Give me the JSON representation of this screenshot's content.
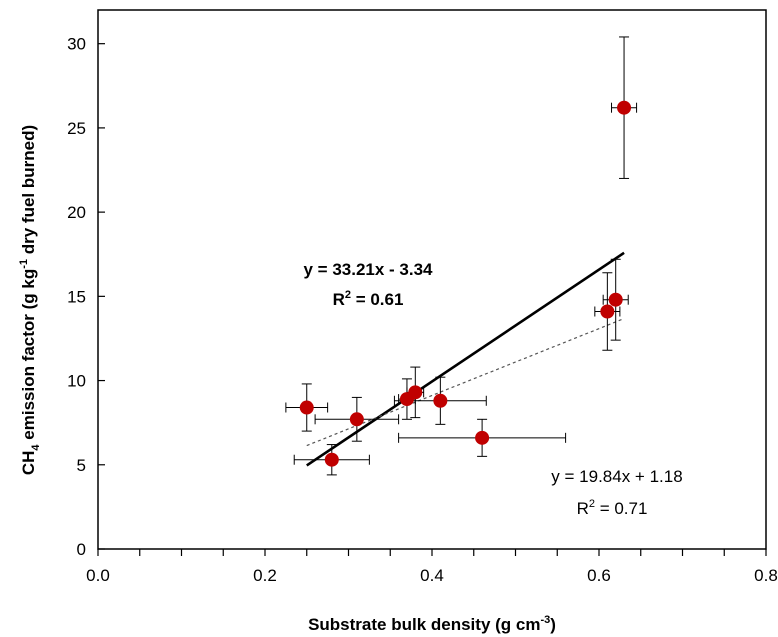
{
  "chart_data": {
    "type": "scatter",
    "xlabel": {
      "main": "Substrate bulk density (g cm",
      "sup": "-3",
      "end": ")"
    },
    "ylabel": {
      "main": "CH",
      "sub": "4",
      "mid": "  emission factor (g kg",
      "sup": "-1",
      "end": " dry fuel burned)"
    },
    "xlim": [
      0.0,
      0.8
    ],
    "ylim": [
      0,
      32
    ],
    "x_ticks": [
      0.0,
      0.2,
      0.4,
      0.6,
      0.8
    ],
    "x_tick_labels": [
      "0.0",
      "0.2",
      "0.4",
      "0.6",
      "0.8"
    ],
    "y_ticks": [
      0,
      5,
      10,
      15,
      20,
      25,
      30
    ],
    "y_tick_labels": [
      "0",
      "5",
      "10",
      "15",
      "20",
      "25",
      "30"
    ],
    "grid": false,
    "points": [
      {
        "x": 0.25,
        "y": 8.4,
        "xerr": 0.025,
        "yerr": 1.4
      },
      {
        "x": 0.28,
        "y": 5.3,
        "xerr": 0.045,
        "yerr": 0.9
      },
      {
        "x": 0.31,
        "y": 7.7,
        "xerr": 0.05,
        "yerr": 1.3
      },
      {
        "x": 0.37,
        "y": 8.9,
        "xerr": 0.01,
        "yerr": 1.2
      },
      {
        "x": 0.38,
        "y": 9.3,
        "xerr": 0.01,
        "yerr": 1.5
      },
      {
        "x": 0.41,
        "y": 8.8,
        "xerr": 0.055,
        "yerr": 1.4
      },
      {
        "x": 0.46,
        "y": 6.6,
        "xerr": 0.1,
        "yerr": 1.1
      },
      {
        "x": 0.61,
        "y": 14.1,
        "xerr": 0.015,
        "yerr": 2.3
      },
      {
        "x": 0.62,
        "y": 14.8,
        "xerr": 0.015,
        "yerr": 2.4
      },
      {
        "x": 0.63,
        "y": 26.2,
        "xerr": 0.015,
        "yerr": 4.2
      }
    ],
    "marker_color": "#c00000",
    "fits": [
      {
        "style": "solid",
        "slope": 33.21,
        "intercept": -3.34,
        "x_range": [
          0.25,
          0.63
        ],
        "equation": "y = 33.21x - 3.34",
        "r2_prefix": "R",
        "r2_sup": "2",
        "r2_value": " = 0.61",
        "bold": true
      },
      {
        "style": "dashed",
        "slope": 19.84,
        "intercept": 1.18,
        "x_range": [
          0.25,
          0.63
        ],
        "equation": "y = 19.84x + 1.18",
        "r2_prefix": "R",
        "r2_sup": "2",
        "r2_value": " = 0.71",
        "bold": false
      }
    ]
  }
}
